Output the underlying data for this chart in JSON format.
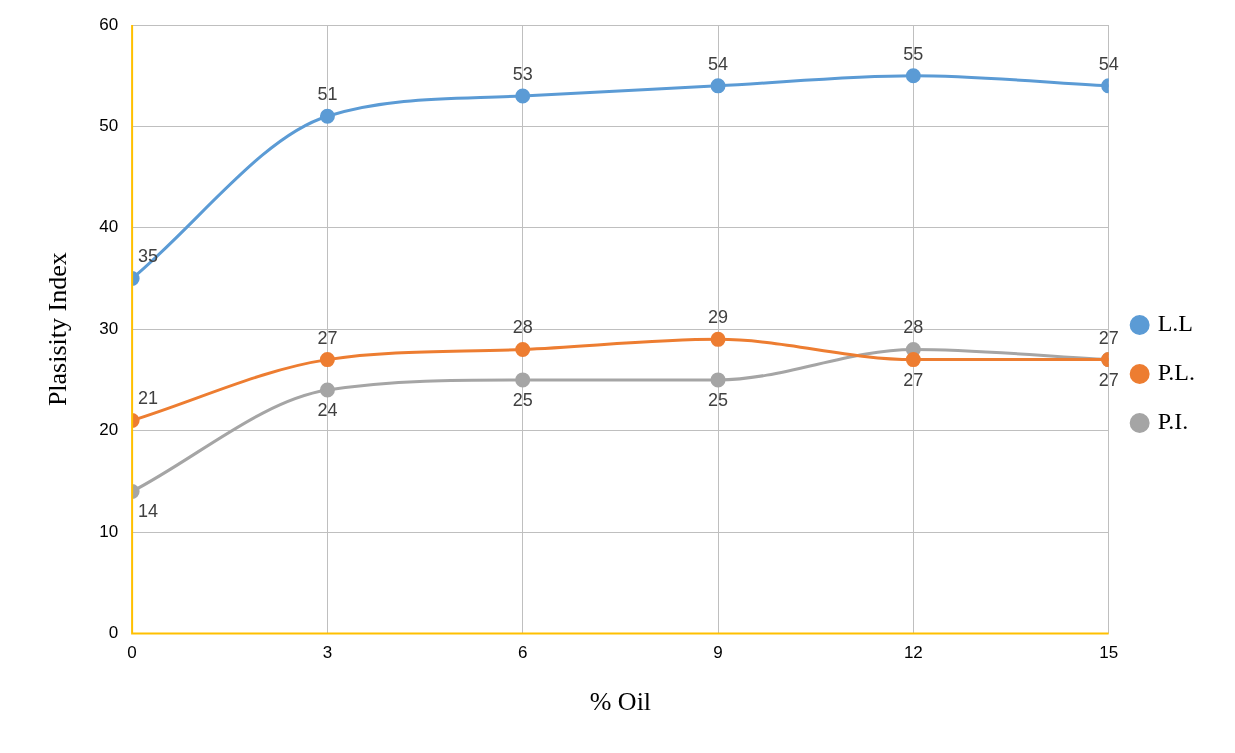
{
  "chart_data": {
    "type": "line",
    "xlabel": "% Oil",
    "ylabel": "Plasisity Index",
    "x": [
      0,
      3,
      6,
      9,
      12,
      15
    ],
    "series": [
      {
        "name": "L.L",
        "color": "#5b9bd5",
        "values": [
          35,
          51,
          53,
          54,
          55,
          54
        ]
      },
      {
        "name": "P.L.",
        "color": "#ed7d31",
        "values": [
          21,
          27,
          28,
          29,
          27,
          27
        ]
      },
      {
        "name": "P.I.",
        "color": "#a5a5a5",
        "values": [
          14,
          24,
          25,
          25,
          28,
          27
        ]
      }
    ],
    "xlim": [
      0,
      15
    ],
    "xticks": [
      0,
      3,
      6,
      9,
      12,
      15
    ],
    "ylim": [
      0,
      60
    ],
    "yticks": [
      0,
      10,
      20,
      30,
      40,
      50,
      60
    ],
    "grid": true,
    "legend": "right",
    "marker": "circle",
    "line_style": "solid",
    "data_labels": true
  }
}
